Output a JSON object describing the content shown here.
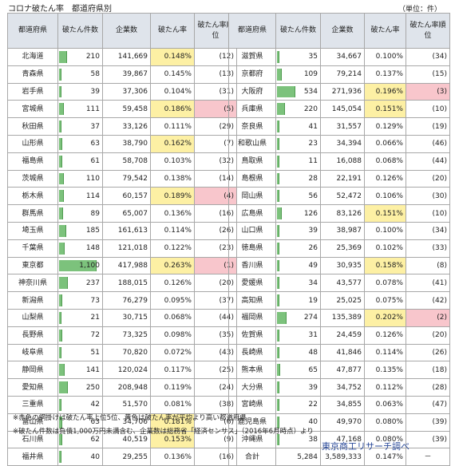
{
  "title": "コロナ破たん率　都道府県別",
  "unit": "（単位：件）",
  "headers": [
    "都道府県",
    "破たん件数",
    "企業数",
    "破たん率",
    "破たん率順位"
  ],
  "colors": {
    "header_bg": "#dfe4eb",
    "rate_highlight": "#fdf0a4",
    "rank_highlight": "#f8c6cc",
    "bar": "#7cc27c"
  },
  "max_bankruptcies": 1100,
  "left_rows": [
    {
      "pref": "北海道",
      "count": "210",
      "companies": "141,669",
      "rate": "0.148%",
      "rank": "(12)",
      "rate_hl": true,
      "rank_hl": false
    },
    {
      "pref": "青森県",
      "count": "58",
      "companies": "39,867",
      "rate": "0.145%",
      "rank": "(13)",
      "rate_hl": false,
      "rank_hl": false
    },
    {
      "pref": "岩手県",
      "count": "39",
      "companies": "37,306",
      "rate": "0.104%",
      "rank": "(31)",
      "rate_hl": false,
      "rank_hl": false
    },
    {
      "pref": "宮城県",
      "count": "111",
      "companies": "59,458",
      "rate": "0.186%",
      "rank": "(5)",
      "rate_hl": true,
      "rank_hl": true
    },
    {
      "pref": "秋田県",
      "count": "37",
      "companies": "33,126",
      "rate": "0.111%",
      "rank": "(29)",
      "rate_hl": false,
      "rank_hl": false
    },
    {
      "pref": "山形県",
      "count": "63",
      "companies": "38,790",
      "rate": "0.162%",
      "rank": "(7)",
      "rate_hl": true,
      "rank_hl": false
    },
    {
      "pref": "福島県",
      "count": "61",
      "companies": "58,708",
      "rate": "0.103%",
      "rank": "(32)",
      "rate_hl": false,
      "rank_hl": false
    },
    {
      "pref": "茨城県",
      "count": "110",
      "companies": "79,542",
      "rate": "0.138%",
      "rank": "(14)",
      "rate_hl": false,
      "rank_hl": false
    },
    {
      "pref": "栃木県",
      "count": "114",
      "companies": "60,157",
      "rate": "0.189%",
      "rank": "(4)",
      "rate_hl": true,
      "rank_hl": true
    },
    {
      "pref": "群馬県",
      "count": "89",
      "companies": "65,007",
      "rate": "0.136%",
      "rank": "(16)",
      "rate_hl": false,
      "rank_hl": false
    },
    {
      "pref": "埼玉県",
      "count": "185",
      "companies": "161,613",
      "rate": "0.114%",
      "rank": "(26)",
      "rate_hl": false,
      "rank_hl": false
    },
    {
      "pref": "千葉県",
      "count": "148",
      "companies": "121,018",
      "rate": "0.122%",
      "rank": "(23)",
      "rate_hl": false,
      "rank_hl": false
    },
    {
      "pref": "東京都",
      "count": "1,100",
      "companies": "417,988",
      "rate": "0.263%",
      "rank": "(1)",
      "rate_hl": true,
      "rank_hl": true
    },
    {
      "pref": "神奈川県",
      "count": "237",
      "companies": "188,015",
      "rate": "0.126%",
      "rank": "(20)",
      "rate_hl": false,
      "rank_hl": false
    },
    {
      "pref": "新潟県",
      "count": "73",
      "companies": "76,279",
      "rate": "0.095%",
      "rank": "(37)",
      "rate_hl": false,
      "rank_hl": false
    },
    {
      "pref": "山梨県",
      "count": "21",
      "companies": "30,715",
      "rate": "0.068%",
      "rank": "(44)",
      "rate_hl": false,
      "rank_hl": false
    },
    {
      "pref": "長野県",
      "count": "72",
      "companies": "73,325",
      "rate": "0.098%",
      "rank": "(35)",
      "rate_hl": false,
      "rank_hl": false
    },
    {
      "pref": "岐阜県",
      "count": "51",
      "companies": "70,820",
      "rate": "0.072%",
      "rank": "(43)",
      "rate_hl": false,
      "rank_hl": false
    },
    {
      "pref": "静岡県",
      "count": "141",
      "companies": "120,024",
      "rate": "0.117%",
      "rank": "(25)",
      "rate_hl": false,
      "rank_hl": false
    },
    {
      "pref": "愛知県",
      "count": "250",
      "companies": "208,948",
      "rate": "0.119%",
      "rank": "(24)",
      "rate_hl": false,
      "rank_hl": false
    },
    {
      "pref": "三重県",
      "count": "42",
      "companies": "51,570",
      "rate": "0.081%",
      "rank": "(38)",
      "rate_hl": false,
      "rank_hl": false
    },
    {
      "pref": "富山県",
      "count": "63",
      "companies": "34,706",
      "rate": "0.181%",
      "rank": "(6)",
      "rate_hl": true,
      "rank_hl": false
    },
    {
      "pref": "石川県",
      "count": "62",
      "companies": "40,519",
      "rate": "0.153%",
      "rank": "(9)",
      "rate_hl": true,
      "rank_hl": false
    },
    {
      "pref": "福井県",
      "count": "40",
      "companies": "29,255",
      "rate": "0.136%",
      "rank": "(16)",
      "rate_hl": false,
      "rank_hl": false
    }
  ],
  "right_rows": [
    {
      "pref": "滋賀県",
      "count": "35",
      "companies": "34,667",
      "rate": "0.100%",
      "rank": "(34)",
      "rate_hl": false,
      "rank_hl": false
    },
    {
      "pref": "京都府",
      "count": "109",
      "companies": "79,214",
      "rate": "0.137%",
      "rank": "(15)",
      "rate_hl": false,
      "rank_hl": false
    },
    {
      "pref": "大阪府",
      "count": "534",
      "companies": "271,936",
      "rate": "0.196%",
      "rank": "(3)",
      "rate_hl": true,
      "rank_hl": true
    },
    {
      "pref": "兵庫県",
      "count": "220",
      "companies": "145,054",
      "rate": "0.151%",
      "rank": "(10)",
      "rate_hl": true,
      "rank_hl": false
    },
    {
      "pref": "奈良県",
      "count": "41",
      "companies": "31,557",
      "rate": "0.129%",
      "rank": "(19)",
      "rate_hl": false,
      "rank_hl": false
    },
    {
      "pref": "和歌山県",
      "count": "23",
      "companies": "34,394",
      "rate": "0.066%",
      "rank": "(46)",
      "rate_hl": false,
      "rank_hl": false
    },
    {
      "pref": "鳥取県",
      "count": "11",
      "companies": "16,088",
      "rate": "0.068%",
      "rank": "(44)",
      "rate_hl": false,
      "rank_hl": false
    },
    {
      "pref": "島根県",
      "count": "28",
      "companies": "22,191",
      "rate": "0.126%",
      "rank": "(20)",
      "rate_hl": false,
      "rank_hl": false
    },
    {
      "pref": "岡山県",
      "count": "56",
      "companies": "52,472",
      "rate": "0.106%",
      "rank": "(30)",
      "rate_hl": false,
      "rank_hl": false
    },
    {
      "pref": "広島県",
      "count": "126",
      "companies": "83,126",
      "rate": "0.151%",
      "rank": "(10)",
      "rate_hl": true,
      "rank_hl": false
    },
    {
      "pref": "山口県",
      "count": "39",
      "companies": "38,987",
      "rate": "0.100%",
      "rank": "(34)",
      "rate_hl": false,
      "rank_hl": false
    },
    {
      "pref": "徳島県",
      "count": "26",
      "companies": "25,369",
      "rate": "0.102%",
      "rank": "(33)",
      "rate_hl": false,
      "rank_hl": false
    },
    {
      "pref": "香川県",
      "count": "49",
      "companies": "30,935",
      "rate": "0.158%",
      "rank": "(8)",
      "rate_hl": true,
      "rank_hl": false
    },
    {
      "pref": "愛媛県",
      "count": "34",
      "companies": "43,577",
      "rate": "0.078%",
      "rank": "(41)",
      "rate_hl": false,
      "rank_hl": false
    },
    {
      "pref": "高知県",
      "count": "19",
      "companies": "25,025",
      "rate": "0.075%",
      "rank": "(42)",
      "rate_hl": false,
      "rank_hl": false
    },
    {
      "pref": "福岡県",
      "count": "274",
      "companies": "135,389",
      "rate": "0.202%",
      "rank": "(2)",
      "rate_hl": true,
      "rank_hl": true
    },
    {
      "pref": "佐賀県",
      "count": "31",
      "companies": "24,459",
      "rate": "0.126%",
      "rank": "(20)",
      "rate_hl": false,
      "rank_hl": false
    },
    {
      "pref": "長崎県",
      "count": "48",
      "companies": "41,846",
      "rate": "0.114%",
      "rank": "(26)",
      "rate_hl": false,
      "rank_hl": false
    },
    {
      "pref": "熊本県",
      "count": "65",
      "companies": "47,877",
      "rate": "0.135%",
      "rank": "(18)",
      "rate_hl": false,
      "rank_hl": false
    },
    {
      "pref": "大分県",
      "count": "39",
      "companies": "34,752",
      "rate": "0.112%",
      "rank": "(28)",
      "rate_hl": false,
      "rank_hl": false
    },
    {
      "pref": "宮崎県",
      "count": "22",
      "companies": "34,855",
      "rate": "0.063%",
      "rank": "(47)",
      "rate_hl": false,
      "rank_hl": false
    },
    {
      "pref": "鹿児島県",
      "count": "40",
      "companies": "49,970",
      "rate": "0.080%",
      "rank": "(39)",
      "rate_hl": false,
      "rank_hl": false
    },
    {
      "pref": "沖縄県",
      "count": "38",
      "companies": "47,168",
      "rate": "0.080%",
      "rank": "(39)",
      "rate_hl": false,
      "rank_hl": false
    }
  ],
  "total": {
    "label": "合計",
    "count": "5,284",
    "companies": "3,589,333",
    "rate": "0.147%",
    "rank": "－"
  },
  "notes": [
    "※赤色の網掛けは破たん率上位5位、黄色は破たん率が平均より高い都道府県",
    "※破たん件数は負債1,000万円未満含む、企業数は総務省「経済センサス」（2016年6月時点）より"
  ],
  "credit": "東京商工リサーチ調べ"
}
